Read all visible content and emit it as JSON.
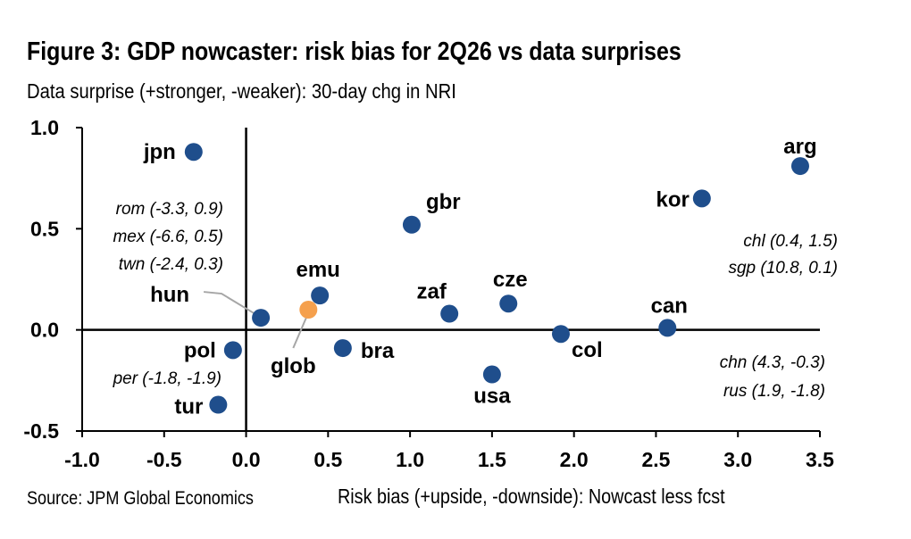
{
  "figure": {
    "title": "Figure 3: GDP nowcaster: risk bias for 2Q26 vs data surprises",
    "subtitle": "Data surprise (+stronger, -weaker): 30-day chg in NRI",
    "source": "Source: JPM Global Economics",
    "xlabel": "Risk bias (+upside, -downside): Nowcast less fcst"
  },
  "colors": {
    "point": "#1f4e8c",
    "highlight": "#f5a04d",
    "axis": "#000000",
    "leader": "#a6a6a6"
  },
  "chart_data": {
    "type": "scatter",
    "title": "Figure 3: GDP nowcaster: risk bias for 2Q26 vs data surprises",
    "xlabel": "Risk bias (+upside, -downside): Nowcast less fcst",
    "ylabel": "Data surprise (+stronger, -weaker): 30-day chg in NRI",
    "xlim": [
      -1.0,
      3.5
    ],
    "ylim": [
      -0.5,
      1.0
    ],
    "x_ticks": [
      "-1.0",
      "-0.5",
      "0.0",
      "0.5",
      "1.0",
      "1.5",
      "2.0",
      "2.5",
      "3.0",
      "3.5"
    ],
    "y_ticks": [
      "1.0",
      "0.5",
      "0.0",
      "-0.5"
    ],
    "grid": false,
    "points": [
      {
        "label": "jpn",
        "x": -0.32,
        "y": 0.88
      },
      {
        "label": "arg",
        "x": 3.38,
        "y": 0.81
      },
      {
        "label": "kor",
        "x": 2.78,
        "y": 0.65
      },
      {
        "label": "gbr",
        "x": 1.01,
        "y": 0.52
      },
      {
        "label": "emu",
        "x": 0.45,
        "y": 0.17
      },
      {
        "label": "hun",
        "x": 0.09,
        "y": 0.06
      },
      {
        "label": "glob",
        "x": 0.38,
        "y": 0.1,
        "highlight": true
      },
      {
        "label": "zaf",
        "x": 1.24,
        "y": 0.08
      },
      {
        "label": "cze",
        "x": 1.6,
        "y": 0.13
      },
      {
        "label": "can",
        "x": 2.57,
        "y": 0.01
      },
      {
        "label": "col",
        "x": 1.92,
        "y": -0.02
      },
      {
        "label": "bra",
        "x": 0.59,
        "y": -0.09
      },
      {
        "label": "pol",
        "x": -0.08,
        "y": -0.1
      },
      {
        "label": "usa",
        "x": 1.5,
        "y": -0.22
      },
      {
        "label": "tur",
        "x": -0.17,
        "y": -0.37
      }
    ],
    "annotations": [
      "rom (-3.3, 0.9)",
      "mex (-6.6, 0.5)",
      "twn (-2.4, 0.3)",
      "per (-1.8, -1.9)",
      "chl (0.4, 1.5)",
      "sgp (10.8, 0.1)",
      "chn (4.3, -0.3)",
      "rus (1.9, -1.8)"
    ]
  }
}
